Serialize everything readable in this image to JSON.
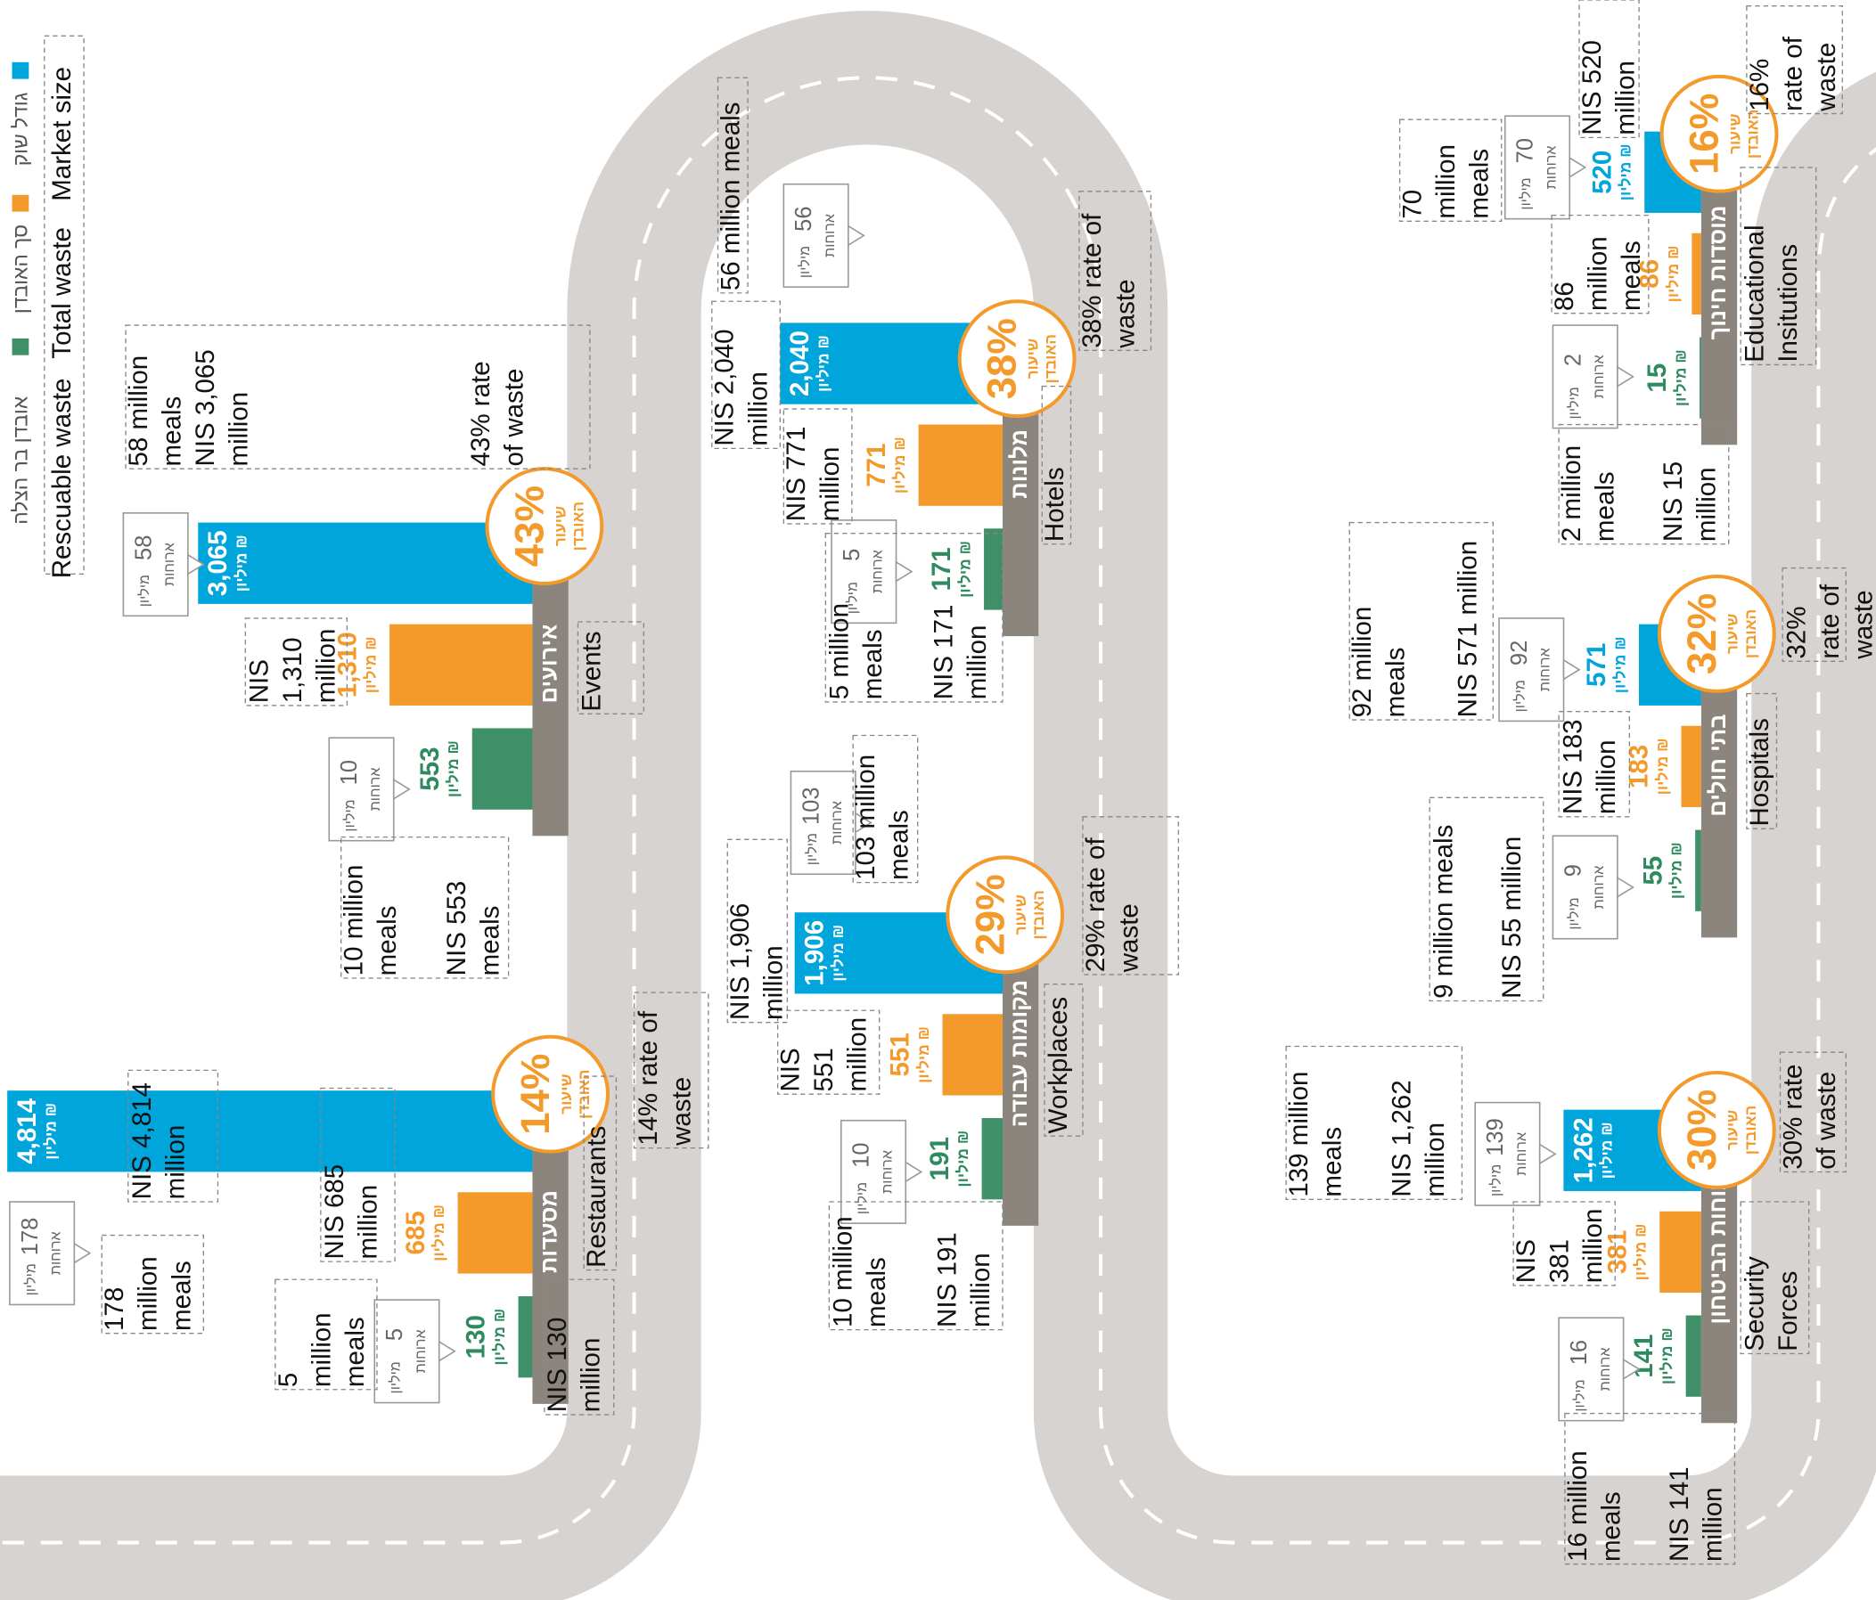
{
  "chart_data": {
    "type": "bar",
    "categories": [
      "אירועים",
      "מסעדות",
      "מלונות",
      "מקומות עבודה",
      "כוחות הביטחון",
      "בתי חולים",
      "מוסדות חינוך"
    ],
    "series": [
      {
        "name": "Market size",
        "name_he": "גודל שוק",
        "color": "#00a5dc",
        "values": [
          3065,
          4814,
          2040,
          1906,
          1262,
          571,
          520
        ],
        "value_labels": [
          "3,065",
          "4,814",
          "2,040",
          "1,906",
          "1,262",
          "571",
          "520"
        ]
      },
      {
        "name": "Total waste",
        "name_he": "סך האובדן",
        "color": "#f39a2b",
        "values": [
          1310,
          685,
          771,
          551,
          381,
          183,
          86
        ],
        "value_labels": [
          "1,310",
          "685",
          "771",
          "551",
          "381",
          "183",
          "86"
        ]
      },
      {
        "name": "Rescuable waste",
        "name_he": "אובדן בר הצלה",
        "color": "#3f8f69",
        "values": [
          553,
          130,
          171,
          191,
          141,
          55,
          15
        ],
        "value_labels": [
          "553",
          "130",
          "171",
          "191",
          "141",
          "55",
          "15"
        ]
      }
    ],
    "unit_label": "מיליון ₪",
    "waste_rate": [
      "43%",
      "14%",
      "38%",
      "29%",
      "30%",
      "32%",
      "16%"
    ],
    "waste_rate_label": [
      "שיעור",
      "האובדן"
    ],
    "market_meals": [
      58,
      178,
      56,
      103,
      139,
      92,
      70
    ],
    "rescuable_meals": [
      10,
      5,
      5,
      10,
      16,
      9,
      2
    ],
    "meals_million": "מיליון",
    "meals_word": "ארוחות"
  },
  "notes": [
    [
      "58 million",
      "meals",
      "NIS 3,065",
      "million"
    ],
    [
      "43% rate",
      "of waste"
    ],
    [
      "NIS",
      "1,310",
      "million"
    ],
    [
      "10 million",
      "meals"
    ],
    [
      "NIS 553",
      "meals"
    ],
    [
      "Events"
    ],
    [
      "NIS 4,814",
      "million"
    ],
    [
      "178",
      "million",
      "meals"
    ],
    [
      "NIS 685",
      "million"
    ],
    [
      "5",
      "million",
      "meals"
    ],
    [
      "NIS 130",
      "million"
    ],
    [
      "Restaurants"
    ],
    [
      "14% rate of",
      "waste"
    ],
    [
      "56 million meals"
    ],
    [
      "NIS 2,040",
      "million"
    ],
    [
      "NIS 771",
      "million"
    ],
    [
      "5 million",
      "meals"
    ],
    [
      "NIS 171",
      "million"
    ],
    [
      "Hotels"
    ],
    [
      "38% rate of",
      "waste"
    ],
    [
      "103 million",
      "meals"
    ],
    [
      "NIS 1,906",
      "million"
    ],
    [
      "NIS",
      "551",
      "million"
    ],
    [
      "10 million",
      "meals"
    ],
    [
      "NIS 191",
      "million"
    ],
    [
      "Workplaces"
    ],
    [
      "29% rate of",
      "waste"
    ],
    [
      "139 million",
      "meals"
    ],
    [
      "NIS 1,262",
      "million"
    ],
    [
      "NIS",
      "381",
      "million"
    ],
    [
      "16 million",
      "meals"
    ],
    [
      "NIS 141",
      "million"
    ],
    [
      "Security",
      "Forces"
    ],
    [
      "30% rate",
      "of waste"
    ],
    [
      "92 million",
      "meals"
    ],
    [
      "NIS 571 million"
    ],
    [
      "NIS 183",
      "million"
    ],
    [
      "9 million meals"
    ],
    [
      "NIS 55 million"
    ],
    [
      "Hospitals"
    ],
    [
      "32%",
      "rate of",
      "waste"
    ],
    [
      "70",
      "million",
      "meals"
    ],
    [
      "NIS 520",
      "million"
    ],
    [
      "86",
      "million",
      "meals"
    ],
    [
      "2 million",
      "meals"
    ],
    [
      "NIS 15",
      "million"
    ],
    [
      "Educational",
      "Insitutions"
    ],
    [
      "16%",
      "rate of",
      "waste"
    ]
  ]
}
